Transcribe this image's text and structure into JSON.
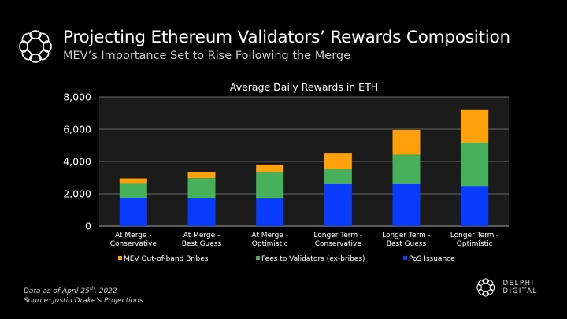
{
  "header": {
    "title": "Projecting Ethereum Validators’ Rewards Composition",
    "subtitle": "MEV’s Importance Set to Rise Following the Merge",
    "logo_icon": "delphi-ring-icon"
  },
  "chart_data": {
    "type": "bar",
    "stacked": true,
    "title": "Average Daily Rewards in ETH",
    "xlabel": "",
    "ylabel": "",
    "ylim": [
      0,
      8000
    ],
    "yticks": [
      0,
      2000,
      4000,
      6000,
      8000
    ],
    "ytick_labels": [
      "0",
      "2,000",
      "4,000",
      "6,000",
      "8,000"
    ],
    "grid": true,
    "legend_position": "bottom",
    "categories": [
      [
        "At Merge -",
        "Conservative"
      ],
      [
        "At Merge -",
        "Best Guess"
      ],
      [
        "At Merge -",
        "Optimistic"
      ],
      [
        "Longer Term -",
        "Conservative"
      ],
      [
        "Longer Term -",
        "Best Guess"
      ],
      [
        "Longer Term -",
        "Optimistic"
      ]
    ],
    "series": [
      {
        "name": "PoS Issuance",
        "color": "#0a3cff",
        "values": [
          1740,
          1720,
          1700,
          2630,
          2630,
          2470
        ]
      },
      {
        "name": "Fees to Validators (ex-bribes)",
        "color": "#47b05a",
        "values": [
          910,
          1250,
          1640,
          900,
          1780,
          2700
        ]
      },
      {
        "name": "MEV Out-of-band Bribes",
        "color": "#ffa10a",
        "values": [
          300,
          380,
          460,
          1000,
          1540,
          2010
        ]
      }
    ],
    "legend_order": [
      "MEV Out-of-band Bribes",
      "Fees to Validators (ex-bribes)",
      "PoS Issuance"
    ]
  },
  "footer": {
    "date_prefix": "Data as of April 25",
    "date_sup": "th",
    "date_suffix": ", 2022",
    "source": "Source: Justin Drake’s Projections",
    "brand": "DELPHI DIGITAL"
  },
  "colors": {
    "background": "#000000",
    "plot_background": "#1b1b1b",
    "gridline": "#5a5a5a"
  }
}
